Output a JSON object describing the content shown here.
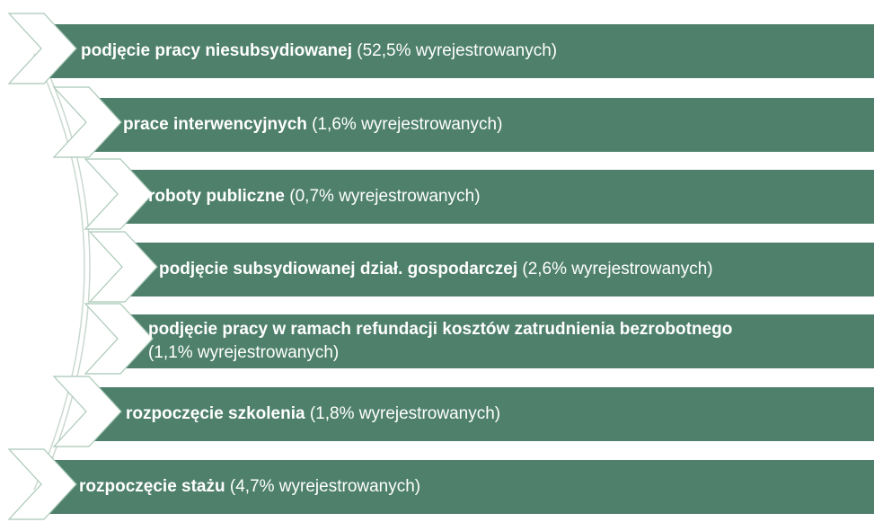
{
  "items": [
    {
      "label": "podjęcie pracy niesubsydiowanej",
      "detail": "(52,5% wyrejestrowanych)"
    },
    {
      "label": "prace interwencyjnych",
      "detail": "(1,6% wyrejestrowanych)"
    },
    {
      "label": "roboty publiczne",
      "detail": "(0,7% wyrejestrowanych)"
    },
    {
      "label": "podjęcie subsydiowanej dział. gospodarczej",
      "detail": "(2,6% wyrejestrowanych)"
    },
    {
      "label": "podjęcie pracy w ramach refundacji kosztów zatrudnienia bezrobotnego",
      "detail": "(1,1% wyrejestrowanych)"
    },
    {
      "label": "rozpoczęcie szkolenia",
      "detail": "(1,8% wyrejestrowanych)"
    },
    {
      "label": "rozpoczęcie stażu",
      "detail": "(4,7% wyrejestrowanych)"
    }
  ]
}
